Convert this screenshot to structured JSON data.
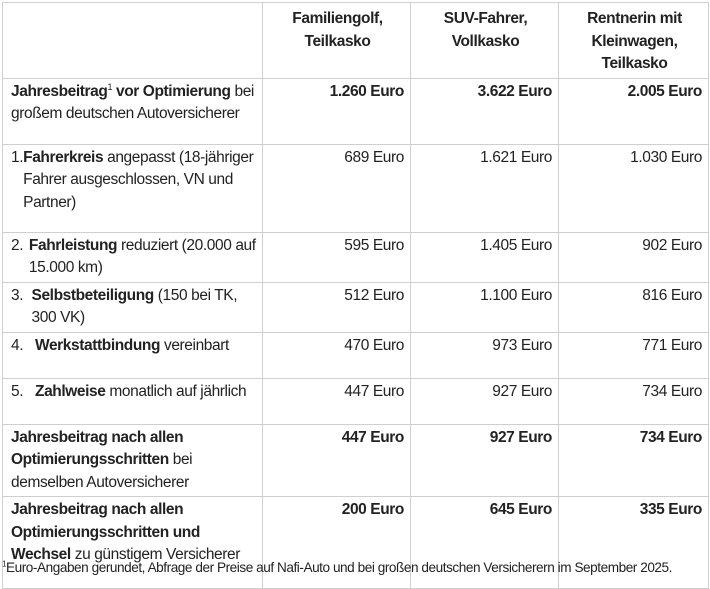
{
  "table": {
    "columns": [
      "",
      "Familiengolf, Teilkasko",
      "SUV-Fahrer, Vollkasko",
      "Rentnerin mit Kleinwagen, Teilkasko"
    ],
    "rows": [
      {
        "num": "",
        "parts": [
          {
            "text": "Jahresbeitrag",
            "bold": true
          },
          {
            "text": "1",
            "sup": true
          },
          {
            "text": " vor Optimierung",
            "bold": true
          },
          {
            "text": " bei großem deutschen Autoversicherer",
            "bold": false
          }
        ],
        "values": [
          "1.260 Euro",
          "3.622 Euro",
          "2.005 Euro"
        ],
        "bold_values": true
      },
      {
        "num": "1.",
        "parts": [
          {
            "text": "Fahrerkreis",
            "bold": true
          },
          {
            "text": " angepasst (18-jähriger Fahrer ausgeschlossen, VN und Partner)",
            "bold": false
          }
        ],
        "values": [
          "689 Euro",
          "1.621 Euro",
          "1.030 Euro"
        ],
        "bold_values": false
      },
      {
        "num": "2.",
        "parts": [
          {
            "text": "Fahrleistung",
            "bold": true
          },
          {
            "text": " reduziert (20.000 auf 15.000 km)",
            "bold": false
          }
        ],
        "values": [
          "595 Euro",
          "1.405 Euro",
          "902 Euro"
        ],
        "bold_values": false
      },
      {
        "num": "3.",
        "parts": [
          {
            "text": "Selbstbeteiligung",
            "bold": true
          },
          {
            "text": " (150 bei TK, 300 VK)",
            "bold": false
          }
        ],
        "values": [
          "512 Euro",
          "1.100 Euro",
          "816 Euro"
        ],
        "bold_values": false
      },
      {
        "num": "4.",
        "parts": [
          {
            "text": "Werkstattbindung",
            "bold": true
          },
          {
            "text": " vereinbart",
            "bold": false
          }
        ],
        "values": [
          "470 Euro",
          "973 Euro",
          "771 Euro"
        ],
        "bold_values": false
      },
      {
        "num": "5.",
        "parts": [
          {
            "text": "Zahlweise",
            "bold": true
          },
          {
            "text": " monatlich auf jährlich",
            "bold": false
          }
        ],
        "values": [
          "447 Euro",
          "927 Euro",
          "734 Euro"
        ],
        "bold_values": false
      },
      {
        "num": "",
        "parts": [
          {
            "text": "Jahresbeitrag nach allen Optimierungsschritten",
            "bold": true
          },
          {
            "text": " bei demselben Autoversicherer",
            "bold": false
          }
        ],
        "values": [
          "447 Euro",
          "927 Euro",
          "734 Euro"
        ],
        "bold_values": true
      },
      {
        "num": "",
        "parts": [
          {
            "text": "Jahresbeitrag nach allen Optimierungsschritten und Wechsel",
            "bold": true
          },
          {
            "text": " zu günstigem Versicherer",
            "bold": false
          }
        ],
        "values": [
          "200 Euro",
          "645 Euro",
          "335 Euro"
        ],
        "bold_values": true
      }
    ]
  },
  "footnote": {
    "mark": "1",
    "text": "Euro-Angaben gerundet, Abfrage der Preise auf Nafi-Auto und bei großen deutschen Versicherern im September 2025."
  }
}
